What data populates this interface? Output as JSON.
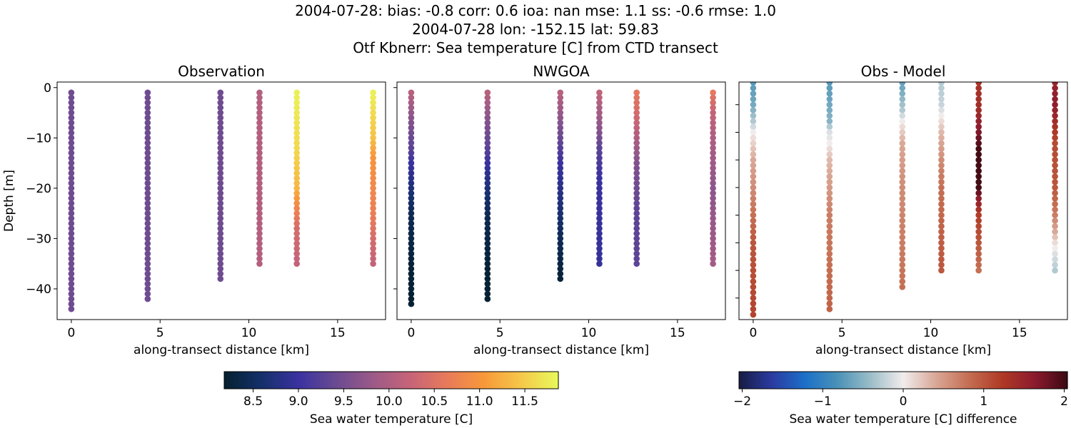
{
  "title_lines": [
    "2004-07-28: bias: -0.8  corr: 0.6  ioa: nan  mse: 1.1  ss: -0.6  rmse: 1.0",
    "2004-07-28 lon: -152.15 lat: 59.83",
    "Otf Kbnerr: Sea temperature [C] from CTD transect"
  ],
  "chart_data": [
    {
      "type": "scatter",
      "title": "Observation",
      "xlabel": "along-transect distance [km]",
      "ylabel": "Depth [m]",
      "xlim": [
        -0.8,
        17.7
      ],
      "ylim": [
        -46.1,
        1.1
      ],
      "xticks": [
        0,
        5,
        10,
        15
      ],
      "yticks": [
        0,
        -10,
        -20,
        -30,
        -40
      ],
      "ytick_labels_shown": true,
      "colormap": "thermal",
      "vlim": [
        8.18,
        11.87
      ],
      "depth_step": 1,
      "columns": [
        {
          "x": 0.0,
          "depth_top": -1,
          "depth_bottom": -44,
          "profile": [
            [
              -1,
              9.45
            ],
            [
              -44,
              9.45
            ]
          ]
        },
        {
          "x": 4.3,
          "depth_top": -1,
          "depth_bottom": -42,
          "profile": [
            [
              -1,
              9.45
            ],
            [
              -42,
              9.45
            ]
          ]
        },
        {
          "x": 8.4,
          "depth_top": -1,
          "depth_bottom": -38,
          "profile": [
            [
              -1,
              9.45
            ],
            [
              -38,
              9.45
            ]
          ]
        },
        {
          "x": 10.6,
          "depth_top": -1,
          "depth_bottom": -35,
          "profile": [
            [
              -1,
              10.05
            ],
            [
              -35,
              10.05
            ]
          ]
        },
        {
          "x": 12.7,
          "depth_top": -1,
          "depth_bottom": -35,
          "profile": [
            [
              -1,
              11.8
            ],
            [
              -12,
              11.6
            ],
            [
              -20,
              11.3
            ],
            [
              -23,
              10.9
            ],
            [
              -28,
              10.4
            ],
            [
              -35,
              10.2
            ]
          ]
        },
        {
          "x": 17.0,
          "depth_top": -1,
          "depth_bottom": -35,
          "profile": [
            [
              -1,
              11.8
            ],
            [
              -10,
              11.4
            ],
            [
              -14,
              11.0
            ],
            [
              -25,
              10.7
            ],
            [
              -30,
              10.4
            ],
            [
              -35,
              10.2
            ]
          ]
        }
      ]
    },
    {
      "type": "scatter",
      "title": "NWGOA",
      "xlabel": "along-transect distance [km]",
      "xlim": [
        -0.8,
        17.7
      ],
      "ylim": [
        -46.1,
        1.1
      ],
      "xticks": [
        0,
        5,
        10,
        15
      ],
      "yticks": [
        0,
        -10,
        -20,
        -30,
        -40
      ],
      "ytick_labels_shown": false,
      "colormap": "thermal",
      "vlim": [
        8.18,
        11.87
      ],
      "depth_step": 1,
      "columns": [
        {
          "x": 0.0,
          "depth_top": -1,
          "depth_bottom": -43,
          "profile": [
            [
              -1,
              10.1
            ],
            [
              -7,
              9.6
            ],
            [
              -12,
              9.3
            ],
            [
              -15,
              9.0
            ],
            [
              -20,
              8.7
            ],
            [
              -25,
              8.45
            ],
            [
              -35,
              8.25
            ],
            [
              -43,
              8.2
            ]
          ]
        },
        {
          "x": 4.3,
          "depth_top": -1,
          "depth_bottom": -42,
          "profile": [
            [
              -1,
              10.1
            ],
            [
              -7,
              9.6
            ],
            [
              -12,
              9.3
            ],
            [
              -15,
              9.0
            ],
            [
              -20,
              8.7
            ],
            [
              -25,
              8.45
            ],
            [
              -35,
              8.25
            ],
            [
              -42,
              8.2
            ]
          ]
        },
        {
          "x": 8.4,
          "depth_top": -1,
          "depth_bottom": -38,
          "profile": [
            [
              -1,
              10.1
            ],
            [
              -10,
              9.4
            ],
            [
              -15,
              9.0
            ],
            [
              -22,
              8.75
            ],
            [
              -30,
              8.45
            ],
            [
              -38,
              8.25
            ]
          ]
        },
        {
          "x": 10.6,
          "depth_top": -1,
          "depth_bottom": -35,
          "profile": [
            [
              -1,
              10.2
            ],
            [
              -8,
              9.7
            ],
            [
              -12,
              9.3
            ],
            [
              -18,
              9.0
            ],
            [
              -35,
              8.95
            ]
          ]
        },
        {
          "x": 12.7,
          "depth_top": -1,
          "depth_bottom": -35,
          "profile": [
            [
              -1,
              10.6
            ],
            [
              -5,
              10.4
            ],
            [
              -10,
              10.0
            ],
            [
              -15,
              9.6
            ],
            [
              -25,
              9.3
            ],
            [
              -35,
              9.3
            ]
          ]
        },
        {
          "x": 17.0,
          "depth_top": -1,
          "depth_bottom": -35,
          "profile": [
            [
              -1,
              10.6
            ],
            [
              -5,
              10.2
            ],
            [
              -10,
              10.0
            ],
            [
              -20,
              9.7
            ],
            [
              -35,
              9.9
            ]
          ]
        }
      ]
    },
    {
      "type": "scatter",
      "title": "Obs - Model",
      "xlabel": "along-transect distance [km]",
      "xlim": [
        -0.8,
        17.7
      ],
      "ylim": [
        -43.9,
        -0.9
      ],
      "xticks": [
        0,
        5,
        10,
        15
      ],
      "yticks": [
        -5,
        -10,
        -15,
        -20,
        -25,
        -30,
        -35,
        -40
      ],
      "ytick_labels_shown": false,
      "colormap": "balance",
      "vlim": [
        -2.04,
        2.04
      ],
      "depth_step": 1,
      "columns": [
        {
          "x": 0.0,
          "depth_top": -1,
          "depth_bottom": -43,
          "profile": [
            [
              -1,
              -0.75
            ],
            [
              -5,
              -0.6
            ],
            [
              -8,
              -0.3
            ],
            [
              -10,
              0.0
            ],
            [
              -15,
              0.4
            ],
            [
              -20,
              0.6
            ],
            [
              -25,
              0.8
            ],
            [
              -30,
              1.0
            ],
            [
              -43,
              1.15
            ]
          ]
        },
        {
          "x": 4.3,
          "depth_top": -1,
          "depth_bottom": -42,
          "profile": [
            [
              -1,
              -0.75
            ],
            [
              -8,
              -0.5
            ],
            [
              -10,
              -0.1
            ],
            [
              -12,
              0.0
            ],
            [
              -15,
              0.3
            ],
            [
              -20,
              0.5
            ],
            [
              -25,
              0.7
            ],
            [
              -42,
              0.9
            ]
          ]
        },
        {
          "x": 8.4,
          "depth_top": -1,
          "depth_bottom": -38,
          "profile": [
            [
              -1,
              -0.7
            ],
            [
              -6,
              -0.3
            ],
            [
              -8,
              0.0
            ],
            [
              -12,
              0.4
            ],
            [
              -20,
              0.6
            ],
            [
              -38,
              0.8
            ]
          ]
        },
        {
          "x": 10.6,
          "depth_top": -1,
          "depth_bottom": -35,
          "profile": [
            [
              -1,
              -0.3
            ],
            [
              -5,
              -0.2
            ],
            [
              -7,
              0.0
            ],
            [
              -10,
              0.3
            ],
            [
              -15,
              0.6
            ],
            [
              -20,
              0.8
            ],
            [
              -35,
              1.0
            ]
          ]
        },
        {
          "x": 12.7,
          "depth_top": -1,
          "depth_bottom": -35,
          "profile": [
            [
              -1,
              1.3
            ],
            [
              -6,
              1.4
            ],
            [
              -10,
              1.7
            ],
            [
              -13,
              2.0
            ],
            [
              -20,
              2.0
            ],
            [
              -22,
              1.6
            ],
            [
              -25,
              1.2
            ],
            [
              -35,
              0.8
            ]
          ]
        },
        {
          "x": 17.0,
          "depth_top": -1,
          "depth_bottom": -35,
          "profile": [
            [
              -1,
              1.5
            ],
            [
              -5,
              1.6
            ],
            [
              -8,
              1.4
            ],
            [
              -12,
              1.1
            ],
            [
              -20,
              1.0
            ],
            [
              -25,
              0.7
            ],
            [
              -28,
              0.4
            ],
            [
              -30,
              0.1
            ],
            [
              -32,
              -0.1
            ],
            [
              -35,
              -0.3
            ]
          ]
        }
      ]
    }
  ],
  "colorbars": [
    {
      "label": "Sea water temperature [C]",
      "colormap": "thermal",
      "vlim": [
        8.18,
        11.87
      ],
      "ticks": [
        "8.5",
        "9.0",
        "9.5",
        "10.0",
        "10.5",
        "11.0",
        "11.5"
      ]
    },
    {
      "label": "Sea water temperature [C] difference",
      "colormap": "balance",
      "vlim": [
        -2.04,
        2.04
      ],
      "ticks": [
        "−2",
        "−1",
        "0",
        "1",
        "2"
      ]
    }
  ],
  "colormaps": {
    "thermal": [
      "#04202f",
      "#15306a",
      "#3a32a0",
      "#6a4a92",
      "#9b5a88",
      "#c66478",
      "#e87a5a",
      "#f8993a",
      "#f5c84a",
      "#e8fa5b"
    ],
    "balance": [
      "#181c43",
      "#2a3ba0",
      "#1c6fc8",
      "#4a92b8",
      "#9bbdc8",
      "#f1ecec",
      "#d9a796",
      "#c46e52",
      "#b03a26",
      "#8c1a2e",
      "#3c0912"
    ]
  }
}
